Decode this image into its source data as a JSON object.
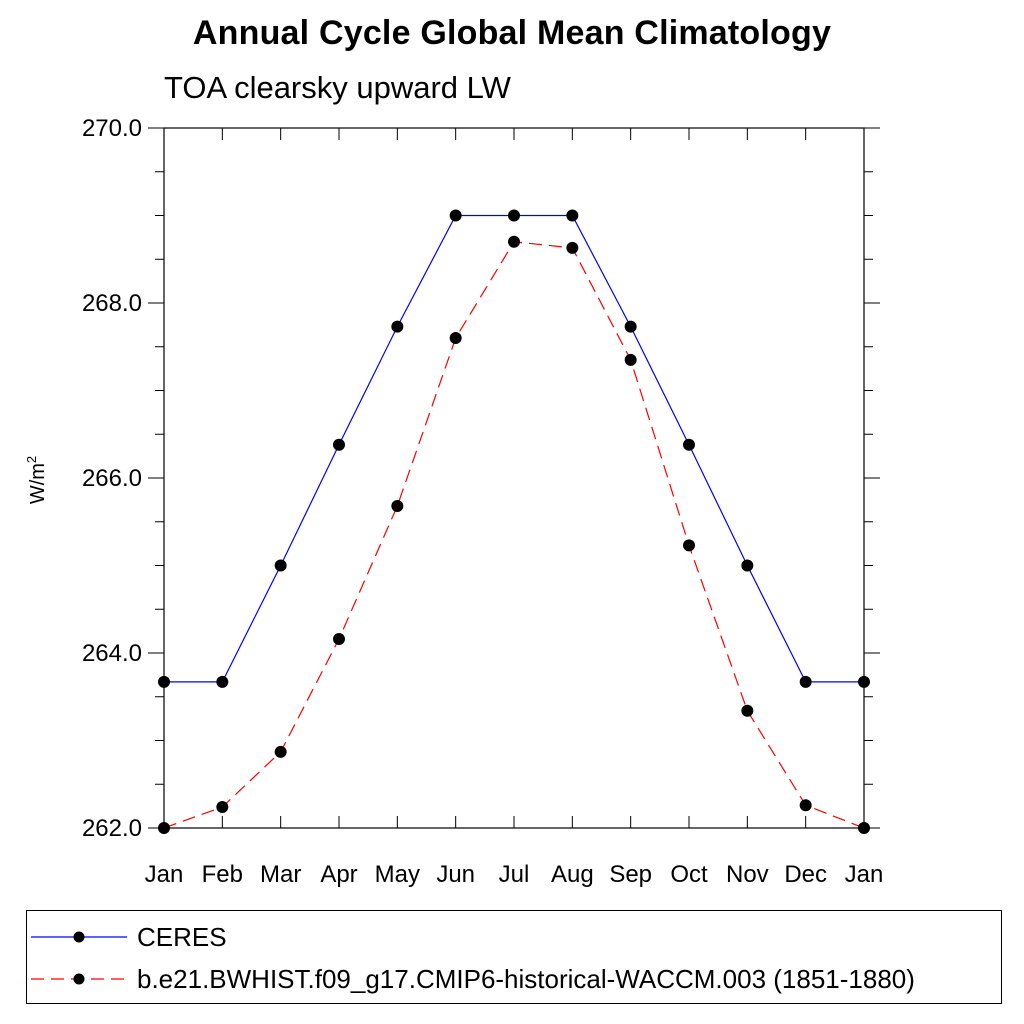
{
  "chart_data": {
    "type": "line",
    "title": "Annual Cycle Global Mean Climatology",
    "subtitle": "TOA clearsky upward LW",
    "ylabel": "W/m",
    "ylabel_superscript": "2",
    "xlabel": "",
    "categories": [
      "Jan",
      "Feb",
      "Mar",
      "Apr",
      "May",
      "Jun",
      "Jul",
      "Aug",
      "Sep",
      "Oct",
      "Nov",
      "Dec",
      "Jan"
    ],
    "ylim": [
      262.0,
      270.0
    ],
    "yticks": [
      262.0,
      264.0,
      266.0,
      268.0,
      270.0
    ],
    "ytick_labels": [
      "262.0",
      "264.0",
      "266.0",
      "268.0",
      "270.0"
    ],
    "series": [
      {
        "name": "CERES",
        "color": "#0000ff",
        "style": "solid",
        "values": [
          263.67,
          263.67,
          265.0,
          266.38,
          267.73,
          269.0,
          269.0,
          269.0,
          267.73,
          266.38,
          265.0,
          263.67,
          263.67
        ]
      },
      {
        "name": "b.e21.BWHIST.f09_g17.CMIP6-historical-WACCM.003 (1851-1880)",
        "color": "#ff0000",
        "style": "dashed",
        "values": [
          262.0,
          262.24,
          262.87,
          264.16,
          265.68,
          267.6,
          268.7,
          268.63,
          267.35,
          265.23,
          263.34,
          262.26,
          262.0
        ]
      }
    ],
    "legend_position": "bottom"
  }
}
